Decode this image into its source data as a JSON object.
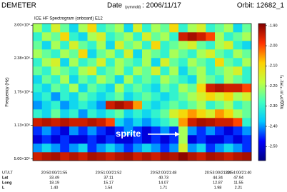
{
  "header": {
    "satellite": "DEMETER",
    "date_label": "Date",
    "date_unit": "(yymmdd)",
    "date": ": 2006/11/17",
    "orbit": "Orbit: 12682_1"
  },
  "chart_data": {
    "type": "heatmap",
    "title": "ICE HF Spectrogram (onboard) E12",
    "ylabel": "Frequency (Hz)",
    "ylim": [
      470000,
      3030000
    ],
    "yticks": [
      {
        "value": 500000,
        "label": "5.00×10⁵"
      },
      {
        "value": 1130000,
        "label": "1.13×10⁶"
      },
      {
        "value": 1750000,
        "label": "1.75×10⁶"
      },
      {
        "value": 2380000,
        "label": "2.38×10⁶"
      },
      {
        "value": 3000000,
        "label": "3.00×10⁶"
      }
    ],
    "colormap": [
      "#00007f",
      "#0000ff",
      "#00c8ff",
      "#40ffc0",
      "#c0ff40",
      "#ffd000",
      "#ff3000",
      "#800000"
    ],
    "colorbar": {
      "label": "log(µV².m⁻².Hz⁻¹)",
      "lim": [
        -2.57,
        -1.89
      ],
      "ticks": [
        {
          "value": -1.9,
          "label": "-1.90"
        },
        {
          "value": -2.0,
          "label": "-2.00"
        },
        {
          "value": -2.1,
          "label": "-2.10"
        },
        {
          "value": -2.2,
          "label": "-2.20"
        },
        {
          "value": -2.3,
          "label": "-2.30"
        },
        {
          "value": -2.4,
          "label": "-2.40"
        },
        {
          "value": -2.5,
          "label": "-2.50"
        }
      ]
    },
    "annotation": "sprite",
    "values": [
      [
        -1.95,
        -1.93,
        -1.92,
        -1.95,
        -1.93,
        -1.95,
        -1.92,
        -1.93,
        -1.95,
        -1.93,
        -1.92,
        -1.95,
        -1.93,
        -1.95,
        -1.92,
        -1.93,
        -1.9,
        -1.93,
        -1.95,
        -1.92,
        -1.93,
        -1.95,
        -1.93,
        -1.92
      ],
      [
        -2.4,
        -2.35,
        -2.4,
        -2.45,
        -2.4,
        -2.35,
        -2.45,
        -2.4,
        -2.35,
        -2.4,
        -2.45,
        -2.4,
        -2.35,
        -2.4,
        -2.45,
        -2.4,
        -2.15,
        -2.4,
        -2.35,
        -2.45,
        -2.4,
        -2.35,
        -2.4,
        -2.45
      ],
      [
        -2.5,
        -2.45,
        -2.5,
        -2.45,
        -2.5,
        -2.5,
        -2.45,
        -2.5,
        -2.45,
        -2.5,
        -2.5,
        -2.45,
        -2.5,
        -2.45,
        -2.5,
        -2.45,
        -2.2,
        -2.5,
        -2.45,
        -2.5,
        -2.5,
        -2.45,
        -2.5,
        -2.45
      ],
      [
        -2.45,
        -2.4,
        -2.45,
        -2.5,
        -2.4,
        -2.45,
        -2.4,
        -2.45,
        -2.5,
        -2.45,
        -2.4,
        -2.45,
        -2.5,
        -2.45,
        -2.4,
        -2.45,
        -2.2,
        -2.4,
        -2.45,
        -2.4,
        -2.45,
        -2.5,
        -2.45,
        -2.4
      ],
      [
        -1.95,
        -1.93,
        -1.95,
        -1.93,
        -1.95,
        -1.95,
        -1.93,
        -1.95,
        -2.0,
        -2.35,
        -2.4,
        -2.35,
        -2.4,
        -2.35,
        -2.3,
        -2.25,
        -2.05,
        -1.95,
        -1.92,
        -1.93,
        -1.95,
        -1.95,
        -2.0,
        -2.3
      ],
      [
        -2.3,
        -2.35,
        -2.25,
        -2.35,
        -2.3,
        -2.4,
        -2.3,
        -2.35,
        -2.3,
        -2.25,
        -2.35,
        -2.3,
        -2.35,
        -2.3,
        -2.25,
        -2.15,
        -2.1,
        -2.05,
        -2.1,
        -2.15,
        -2.05,
        -2.1,
        -2.2,
        -2.25
      ],
      [
        -2.4,
        -2.35,
        -2.3,
        -2.4,
        -2.35,
        -2.3,
        -2.35,
        -2.4,
        -1.95,
        -1.92,
        -1.95,
        -2.05,
        -2.3,
        -2.35,
        -2.3,
        -2.25,
        -2.3,
        -2.25,
        -2.2,
        -2.3,
        -2.25,
        -2.2,
        -2.3,
        -2.25
      ],
      [
        -2.35,
        -2.3,
        -2.4,
        -2.3,
        -2.35,
        -2.25,
        -2.3,
        -2.35,
        -2.3,
        -2.25,
        -2.35,
        -2.3,
        -2.25,
        -2.3,
        -2.35,
        -2.3,
        -2.25,
        -2.2,
        -2.15,
        -2.1,
        -2.15,
        -2.1,
        -2.2,
        -2.15
      ],
      [
        -2.3,
        -2.35,
        -2.25,
        -2.3,
        -2.2,
        -2.35,
        -2.25,
        -2.3,
        -2.35,
        -2.2,
        -2.3,
        -2.25,
        -2.3,
        -2.35,
        -2.25,
        -2.3,
        -2.2,
        -2.25,
        -2.1,
        -1.95,
        -1.93,
        -1.95,
        -1.95,
        -2.0
      ],
      [
        -2.35,
        -2.25,
        -2.3,
        -2.2,
        -2.35,
        -2.25,
        -2.3,
        -2.2,
        -2.25,
        -2.35,
        -2.2,
        -2.3,
        -2.25,
        -2.3,
        -2.2,
        -2.25,
        -2.3,
        -2.35,
        -2.2,
        -2.25,
        -2.3,
        -2.2,
        -2.25,
        -2.3
      ],
      [
        -2.25,
        -2.3,
        -2.2,
        -2.25,
        -2.3,
        -2.2,
        -2.15,
        -2.3,
        -2.25,
        -2.2,
        -2.3,
        -2.2,
        -2.25,
        -2.15,
        -2.3,
        -2.2,
        -2.35,
        -2.25,
        -2.2,
        -2.3,
        -2.25,
        -2.2,
        -2.15,
        -2.3
      ],
      [
        -2.3,
        -2.2,
        -2.15,
        -2.35,
        -2.2,
        -2.3,
        -2.25,
        -2.15,
        -2.3,
        -2.2,
        -2.25,
        -2.3,
        -2.2,
        -2.35,
        -2.15,
        -2.25,
        -2.3,
        -2.2,
        -2.25,
        -2.3,
        -2.1,
        -2.25,
        -2.3,
        -2.2
      ],
      [
        -2.2,
        -2.25,
        -2.3,
        -2.2,
        -2.25,
        -2.1,
        -2.35,
        -2.25,
        -2.2,
        -2.3,
        -2.15,
        -2.35,
        -2.2,
        -2.25,
        -2.3,
        -2.2,
        -2.25,
        -2.3,
        -2.2,
        -2.15,
        -2.25,
        -2.3,
        -2.2,
        -2.25
      ],
      [
        -2.25,
        -2.35,
        -2.2,
        -2.3,
        -2.15,
        -2.25,
        -2.3,
        -2.2,
        -2.35,
        -2.15,
        -2.25,
        -2.2,
        -2.3,
        -2.1,
        -2.3,
        -2.25,
        -2.2,
        -2.15,
        -2.25,
        -2.3,
        -2.2,
        -2.15,
        -2.3,
        -2.35
      ],
      [
        -2.3,
        -2.2,
        -2.25,
        -2.1,
        -2.3,
        -2.35,
        -2.2,
        -2.15,
        -2.3,
        -2.25,
        -2.2,
        -2.3,
        -2.15,
        -2.25,
        -2.2,
        -2.3,
        -1.95,
        -1.92,
        -1.95,
        -2.0,
        -2.2,
        -2.3,
        -2.25,
        -2.2
      ],
      [
        -2.2,
        -2.3,
        -2.15,
        -2.25,
        -2.35,
        -2.2,
        -2.1,
        -2.3,
        -2.25,
        -2.2,
        -2.35,
        -2.15,
        -2.3,
        -2.2,
        -2.25,
        -2.1,
        -2.3,
        -2.2,
        -2.15,
        -2.3,
        -2.25,
        -2.2,
        -2.35,
        -2.25
      ]
    ]
  },
  "orbit_table": {
    "row_labels": [
      "UT/LT",
      "Lat",
      "Long",
      "L"
    ],
    "columns": [
      [
        "20:50:00/21:55",
        "33.49",
        "18.19",
        "1.40"
      ],
      [
        "20:51:00/21:52",
        "37.11",
        "15.17",
        "1.54"
      ],
      [
        "20:52:00/21:48",
        "40.73",
        "14.07",
        "1.71"
      ],
      [
        "20:53:00/21:44",
        "44.34",
        "12.87",
        "1.98"
      ],
      [
        "20:54:00/21:40",
        "47.94",
        "11.55",
        "2.21"
      ]
    ]
  }
}
